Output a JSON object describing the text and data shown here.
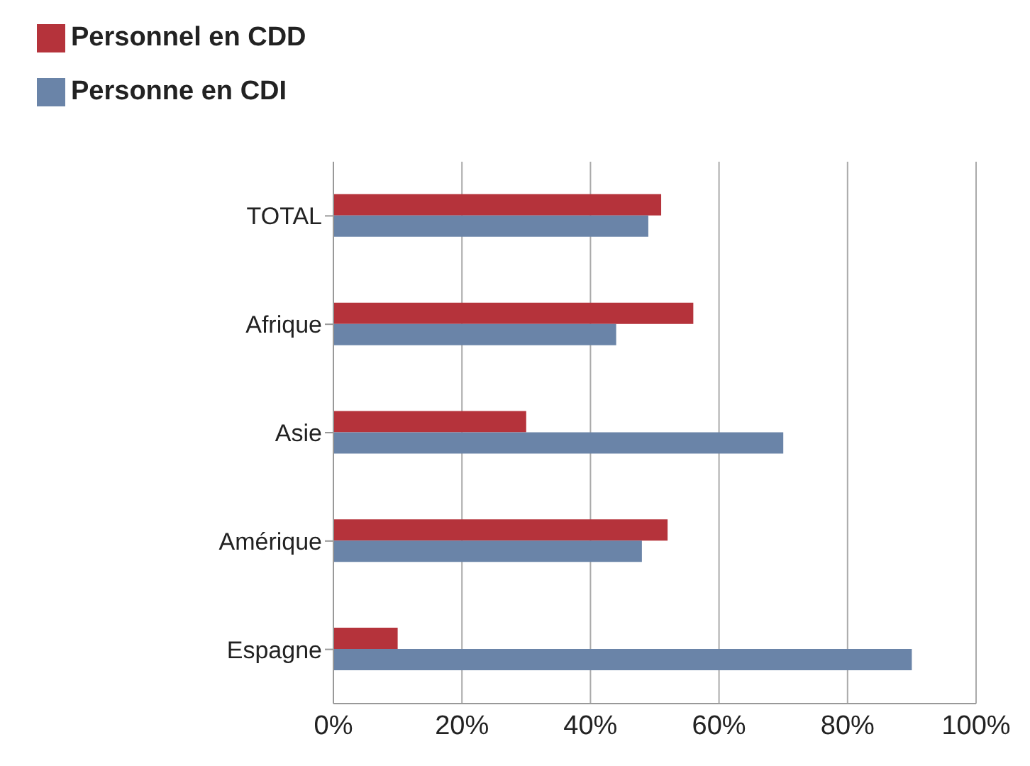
{
  "chart_data": {
    "type": "bar",
    "orientation": "horizontal",
    "categories": [
      "TOTAL",
      "Afrique",
      "Asie",
      "Amérique",
      "Espagne"
    ],
    "series": [
      {
        "name": "Personnel en CDD",
        "color": "#b5333b",
        "values": [
          51,
          56,
          30,
          52,
          10
        ]
      },
      {
        "name": "Personne en CDI",
        "color": "#6a84a8",
        "values": [
          49,
          44,
          70,
          48,
          90
        ]
      }
    ],
    "xlim": [
      0,
      100
    ],
    "xticks": [
      {
        "value": 0,
        "label": "0%"
      },
      {
        "value": 20,
        "label": "20%"
      },
      {
        "value": 40,
        "label": "40%"
      },
      {
        "value": 60,
        "label": "60%"
      },
      {
        "value": 80,
        "label": "80%"
      },
      {
        "value": 100,
        "label": "100%"
      }
    ],
    "grid": "x",
    "legend": "top left"
  }
}
